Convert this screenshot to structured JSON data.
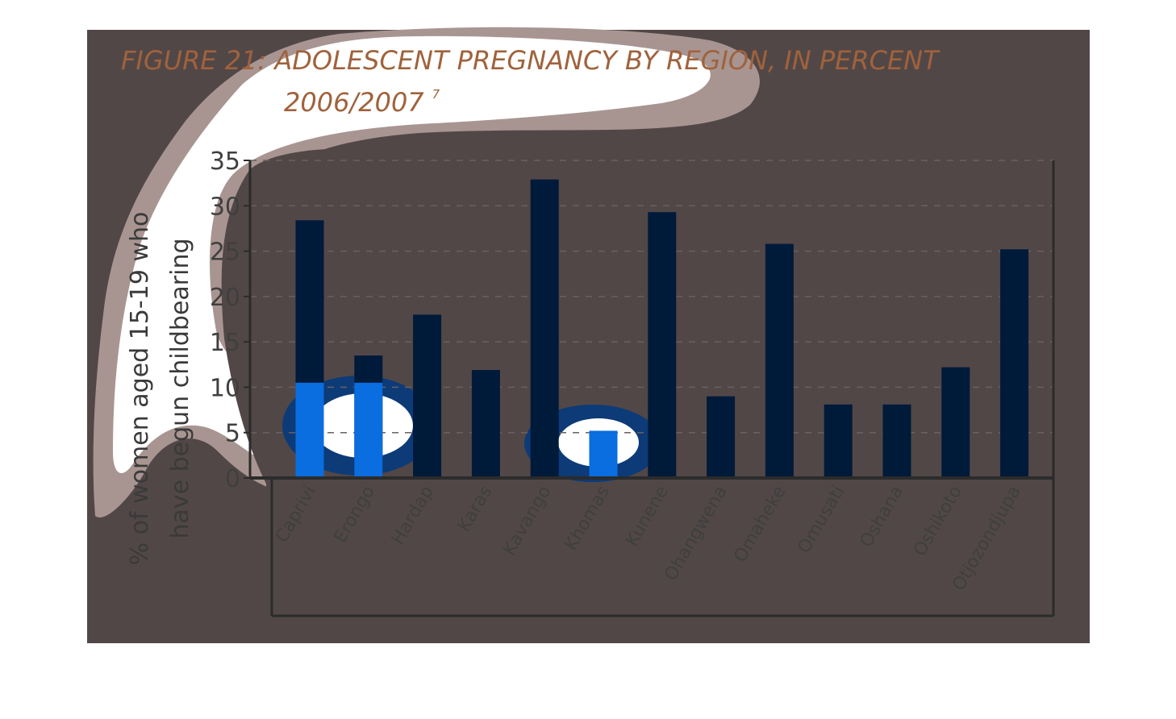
{
  "title_line1": "FIGURE 21: ADOLESCENT PREGNANCY BY REGION, IN PERCENT",
  "title_line2": "2006/2007",
  "title_superscript": "7",
  "colors": {
    "background_panel": "#524747",
    "title": "#a0623c",
    "bar": "#001a3a",
    "bar_highlight": "#0a6de0",
    "axis": "#2b2b2b",
    "grid": "#6b6060",
    "blob_light": "#a89591",
    "blob_white": "#ffffff"
  },
  "chart_data": {
    "type": "bar",
    "title": "FIGURE 21: ADOLESCENT PREGNANCY BY REGION, IN PERCENT 2006/2007",
    "ylabel": "% of women aged 15-19 who have begun childbearing",
    "xlabel": "",
    "ylim": [
      0,
      35
    ],
    "yticks": [
      0,
      5,
      10,
      15,
      20,
      25,
      30,
      35
    ],
    "grid": true,
    "categories": [
      "Caprivi",
      "Erongo",
      "Hardap",
      "Karas",
      "Kavango",
      "Khomas",
      "Kunene",
      "Ohangwena",
      "Omaheke",
      "Omusati",
      "Oshana",
      "Oshikoto",
      "Otjozondjupa"
    ],
    "values": [
      28.4,
      13.5,
      18.0,
      11.9,
      32.9,
      5.2,
      29.3,
      9.0,
      25.8,
      8.1,
      8.1,
      12.2,
      25.2
    ]
  }
}
